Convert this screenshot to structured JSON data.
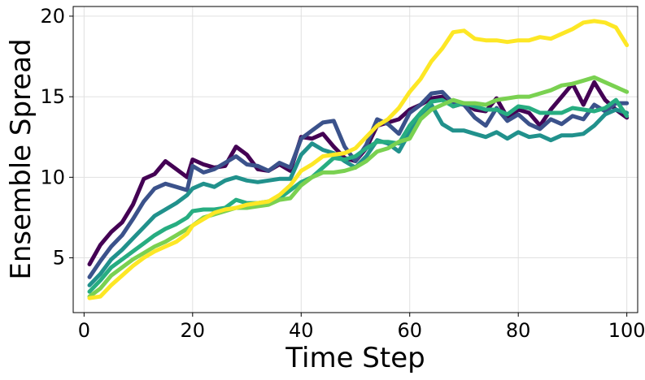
{
  "chart_data": {
    "type": "line",
    "title": "",
    "xlabel": "Time Step",
    "ylabel": "Ensemble Spread",
    "xlim": [
      -2,
      102
    ],
    "ylim": [
      1.6,
      20.6
    ],
    "xticks": [
      0,
      20,
      40,
      60,
      80,
      100
    ],
    "yticks": [
      5,
      10,
      15,
      20
    ],
    "grid": true,
    "legend": "none",
    "series": [
      {
        "color": "#440154",
        "points": [
          [
            1,
            4.6
          ],
          [
            3,
            5.8
          ],
          [
            5,
            6.6
          ],
          [
            7,
            7.2
          ],
          [
            9,
            8.3
          ],
          [
            11,
            9.9
          ],
          [
            13,
            10.2
          ],
          [
            15,
            11.0
          ],
          [
            17,
            10.5
          ],
          [
            19,
            10.0
          ],
          [
            20,
            11.1
          ],
          [
            22,
            10.8
          ],
          [
            24,
            10.6
          ],
          [
            26,
            10.7
          ],
          [
            28,
            11.9
          ],
          [
            30,
            11.4
          ],
          [
            32,
            10.5
          ],
          [
            34,
            10.4
          ],
          [
            36,
            10.8
          ],
          [
            38,
            10.4
          ],
          [
            40,
            12.5
          ],
          [
            42,
            12.4
          ],
          [
            44,
            12.7
          ],
          [
            46,
            11.9
          ],
          [
            48,
            11.2
          ],
          [
            50,
            11.0
          ],
          [
            52,
            11.8
          ],
          [
            54,
            13.2
          ],
          [
            56,
            13.4
          ],
          [
            58,
            13.6
          ],
          [
            60,
            14.2
          ],
          [
            62,
            14.5
          ],
          [
            64,
            14.9
          ],
          [
            66,
            15.0
          ],
          [
            68,
            14.4
          ],
          [
            70,
            14.6
          ],
          [
            72,
            14.2
          ],
          [
            74,
            14.1
          ],
          [
            76,
            14.9
          ],
          [
            78,
            13.7
          ],
          [
            80,
            14.2
          ],
          [
            82,
            14.0
          ],
          [
            84,
            13.2
          ],
          [
            86,
            14.2
          ],
          [
            88,
            15.0
          ],
          [
            90,
            15.8
          ],
          [
            92,
            14.5
          ],
          [
            94,
            15.9
          ],
          [
            96,
            14.8
          ],
          [
            98,
            14.2
          ],
          [
            100,
            13.7
          ]
        ]
      },
      {
        "color": "#3b528b",
        "points": [
          [
            1,
            3.8
          ],
          [
            3,
            4.8
          ],
          [
            5,
            5.7
          ],
          [
            7,
            6.4
          ],
          [
            9,
            7.4
          ],
          [
            11,
            8.5
          ],
          [
            13,
            9.3
          ],
          [
            15,
            9.6
          ],
          [
            17,
            9.4
          ],
          [
            19,
            9.2
          ],
          [
            20,
            10.7
          ],
          [
            22,
            10.3
          ],
          [
            24,
            10.5
          ],
          [
            26,
            10.9
          ],
          [
            28,
            11.3
          ],
          [
            30,
            10.8
          ],
          [
            32,
            10.7
          ],
          [
            34,
            10.4
          ],
          [
            36,
            10.9
          ],
          [
            38,
            10.6
          ],
          [
            40,
            12.4
          ],
          [
            42,
            12.9
          ],
          [
            44,
            13.4
          ],
          [
            46,
            13.5
          ],
          [
            48,
            11.9
          ],
          [
            50,
            11.0
          ],
          [
            52,
            12.0
          ],
          [
            54,
            13.6
          ],
          [
            56,
            13.3
          ],
          [
            58,
            12.7
          ],
          [
            60,
            14.0
          ],
          [
            62,
            14.5
          ],
          [
            64,
            15.2
          ],
          [
            66,
            15.3
          ],
          [
            68,
            14.6
          ],
          [
            70,
            14.5
          ],
          [
            72,
            13.7
          ],
          [
            74,
            13.2
          ],
          [
            76,
            14.3
          ],
          [
            78,
            13.5
          ],
          [
            80,
            13.9
          ],
          [
            82,
            13.3
          ],
          [
            84,
            13.0
          ],
          [
            86,
            13.6
          ],
          [
            88,
            13.3
          ],
          [
            90,
            13.8
          ],
          [
            92,
            13.6
          ],
          [
            94,
            14.5
          ],
          [
            96,
            14.1
          ],
          [
            98,
            14.6
          ],
          [
            100,
            14.6
          ]
        ]
      },
      {
        "color": "#21918c",
        "points": [
          [
            1,
            3.3
          ],
          [
            3,
            4.0
          ],
          [
            5,
            4.9
          ],
          [
            7,
            5.5
          ],
          [
            9,
            6.2
          ],
          [
            11,
            6.9
          ],
          [
            13,
            7.6
          ],
          [
            15,
            8.0
          ],
          [
            17,
            8.4
          ],
          [
            19,
            8.9
          ],
          [
            20,
            9.3
          ],
          [
            22,
            9.6
          ],
          [
            24,
            9.4
          ],
          [
            26,
            9.8
          ],
          [
            28,
            10.0
          ],
          [
            30,
            9.8
          ],
          [
            32,
            9.7
          ],
          [
            34,
            9.8
          ],
          [
            36,
            9.9
          ],
          [
            38,
            9.9
          ],
          [
            40,
            11.4
          ],
          [
            42,
            12.1
          ],
          [
            44,
            11.7
          ],
          [
            46,
            11.5
          ],
          [
            48,
            11.0
          ],
          [
            50,
            10.6
          ],
          [
            52,
            11.3
          ],
          [
            54,
            12.3
          ],
          [
            56,
            12.1
          ],
          [
            58,
            11.6
          ],
          [
            60,
            12.8
          ],
          [
            62,
            13.9
          ],
          [
            64,
            14.5
          ],
          [
            66,
            13.3
          ],
          [
            68,
            12.9
          ],
          [
            70,
            12.9
          ],
          [
            72,
            12.7
          ],
          [
            74,
            12.5
          ],
          [
            76,
            12.8
          ],
          [
            78,
            12.4
          ],
          [
            80,
            12.8
          ],
          [
            82,
            12.5
          ],
          [
            84,
            12.6
          ],
          [
            86,
            12.3
          ],
          [
            88,
            12.6
          ],
          [
            90,
            12.6
          ],
          [
            92,
            12.7
          ],
          [
            94,
            13.2
          ],
          [
            96,
            13.9
          ],
          [
            98,
            14.2
          ],
          [
            100,
            14.0
          ]
        ]
      },
      {
        "color": "#27ad81",
        "points": [
          [
            1,
            2.9
          ],
          [
            3,
            3.6
          ],
          [
            5,
            4.4
          ],
          [
            7,
            4.9
          ],
          [
            9,
            5.4
          ],
          [
            11,
            5.9
          ],
          [
            13,
            6.4
          ],
          [
            15,
            6.8
          ],
          [
            17,
            7.1
          ],
          [
            19,
            7.5
          ],
          [
            20,
            7.9
          ],
          [
            22,
            8.0
          ],
          [
            24,
            8.0
          ],
          [
            26,
            8.1
          ],
          [
            28,
            8.6
          ],
          [
            30,
            8.4
          ],
          [
            32,
            8.4
          ],
          [
            34,
            8.5
          ],
          [
            36,
            8.7
          ],
          [
            38,
            9.2
          ],
          [
            40,
            9.7
          ],
          [
            42,
            10.0
          ],
          [
            44,
            10.6
          ],
          [
            46,
            11.2
          ],
          [
            48,
            11.1
          ],
          [
            50,
            11.3
          ],
          [
            52,
            11.8
          ],
          [
            54,
            12.2
          ],
          [
            56,
            12.2
          ],
          [
            58,
            12.1
          ],
          [
            60,
            13.2
          ],
          [
            62,
            14.0
          ],
          [
            64,
            14.7
          ],
          [
            66,
            14.8
          ],
          [
            68,
            14.4
          ],
          [
            70,
            14.6
          ],
          [
            72,
            14.4
          ],
          [
            74,
            14.2
          ],
          [
            76,
            14.2
          ],
          [
            78,
            13.9
          ],
          [
            80,
            14.4
          ],
          [
            82,
            14.3
          ],
          [
            84,
            14.0
          ],
          [
            86,
            14.0
          ],
          [
            88,
            14.0
          ],
          [
            90,
            14.3
          ],
          [
            92,
            14.2
          ],
          [
            94,
            14.1
          ],
          [
            96,
            14.3
          ],
          [
            98,
            14.8
          ],
          [
            100,
            13.8
          ]
        ]
      },
      {
        "color": "#7ad151",
        "points": [
          [
            1,
            2.6
          ],
          [
            3,
            3.1
          ],
          [
            5,
            3.9
          ],
          [
            7,
            4.4
          ],
          [
            9,
            4.9
          ],
          [
            11,
            5.3
          ],
          [
            13,
            5.7
          ],
          [
            15,
            6.0
          ],
          [
            17,
            6.4
          ],
          [
            19,
            6.8
          ],
          [
            20,
            7.0
          ],
          [
            22,
            7.5
          ],
          [
            24,
            7.7
          ],
          [
            26,
            7.9
          ],
          [
            28,
            8.1
          ],
          [
            30,
            8.1
          ],
          [
            32,
            8.2
          ],
          [
            34,
            8.3
          ],
          [
            36,
            8.6
          ],
          [
            38,
            8.7
          ],
          [
            40,
            9.5
          ],
          [
            42,
            10.0
          ],
          [
            44,
            10.3
          ],
          [
            46,
            10.3
          ],
          [
            48,
            10.4
          ],
          [
            50,
            10.6
          ],
          [
            52,
            11.0
          ],
          [
            54,
            11.6
          ],
          [
            56,
            11.8
          ],
          [
            58,
            12.2
          ],
          [
            60,
            12.4
          ],
          [
            62,
            13.6
          ],
          [
            64,
            14.2
          ],
          [
            66,
            14.5
          ],
          [
            68,
            14.8
          ],
          [
            70,
            14.6
          ],
          [
            72,
            14.6
          ],
          [
            74,
            14.5
          ],
          [
            76,
            14.8
          ],
          [
            78,
            14.9
          ],
          [
            80,
            15.0
          ],
          [
            82,
            15.0
          ],
          [
            84,
            15.2
          ],
          [
            86,
            15.4
          ],
          [
            88,
            15.7
          ],
          [
            90,
            15.8
          ],
          [
            92,
            16.0
          ],
          [
            94,
            16.2
          ],
          [
            96,
            15.9
          ],
          [
            98,
            15.6
          ],
          [
            100,
            15.3
          ]
        ]
      },
      {
        "color": "#fde725",
        "points": [
          [
            1,
            2.5
          ],
          [
            3,
            2.6
          ],
          [
            5,
            3.3
          ],
          [
            7,
            3.9
          ],
          [
            9,
            4.5
          ],
          [
            11,
            5.0
          ],
          [
            13,
            5.4
          ],
          [
            15,
            5.7
          ],
          [
            17,
            6.0
          ],
          [
            19,
            6.5
          ],
          [
            20,
            7.0
          ],
          [
            22,
            7.4
          ],
          [
            24,
            7.8
          ],
          [
            26,
            8.0
          ],
          [
            28,
            8.1
          ],
          [
            30,
            8.3
          ],
          [
            32,
            8.4
          ],
          [
            34,
            8.5
          ],
          [
            36,
            8.9
          ],
          [
            38,
            9.5
          ],
          [
            40,
            10.4
          ],
          [
            42,
            10.8
          ],
          [
            44,
            11.3
          ],
          [
            46,
            11.4
          ],
          [
            48,
            11.5
          ],
          [
            50,
            11.8
          ],
          [
            52,
            12.5
          ],
          [
            54,
            13.2
          ],
          [
            56,
            13.6
          ],
          [
            58,
            14.3
          ],
          [
            60,
            15.3
          ],
          [
            62,
            16.1
          ],
          [
            64,
            17.2
          ],
          [
            66,
            18.0
          ],
          [
            68,
            19.0
          ],
          [
            70,
            19.1
          ],
          [
            72,
            18.6
          ],
          [
            74,
            18.5
          ],
          [
            76,
            18.5
          ],
          [
            78,
            18.4
          ],
          [
            80,
            18.5
          ],
          [
            82,
            18.5
          ],
          [
            84,
            18.7
          ],
          [
            86,
            18.6
          ],
          [
            88,
            18.9
          ],
          [
            90,
            19.2
          ],
          [
            92,
            19.6
          ],
          [
            94,
            19.7
          ],
          [
            96,
            19.6
          ],
          [
            98,
            19.3
          ],
          [
            100,
            18.2
          ]
        ]
      }
    ]
  }
}
